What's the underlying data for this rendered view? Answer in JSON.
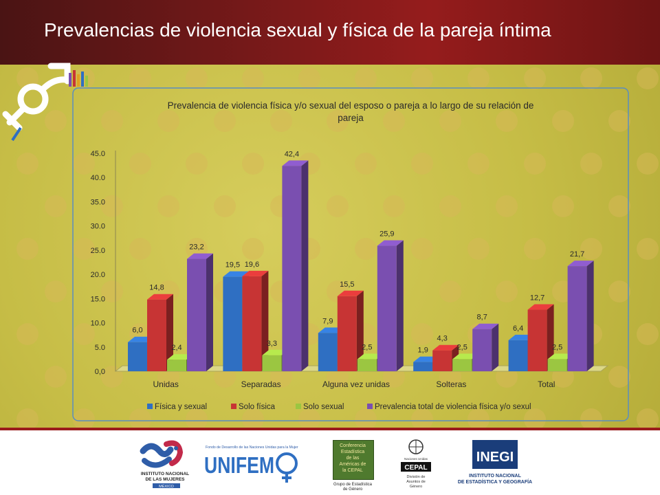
{
  "slide": {
    "title": "Prevalencias de violencia sexual y física de la pareja íntima"
  },
  "chart_data": {
    "type": "bar",
    "title": "Prevalencia de violencia física y/o sexual del esposo o pareja a lo largo de su relación de pareja",
    "title_lines": [
      "Prevalencia de violencia física y/o sexual del esposo o pareja a lo largo de su relación de",
      "pareja"
    ],
    "categories": [
      "Unidas",
      "Separadas",
      "Alguna vez unidas",
      "Solteras",
      "Total"
    ],
    "series": [
      {
        "name": "Física y sexual",
        "values": [
          6.0,
          19.5,
          7.9,
          1.9,
          6.4
        ],
        "color": "#2f6fc2"
      },
      {
        "name": "Solo física",
        "values": [
          14.8,
          19.6,
          15.5,
          4.3,
          12.7
        ],
        "color": "#c73434"
      },
      {
        "name": "Solo sexual",
        "values": [
          2.4,
          3.3,
          2.5,
          2.5,
          2.5
        ],
        "color": "#9bc641"
      },
      {
        "name": "Prevalencia total de violencia física y/o sexul",
        "values": [
          23.2,
          42.4,
          25.9,
          8.7,
          21.7
        ],
        "color": "#7a4fb0"
      }
    ],
    "yticks": [
      "0,0",
      "5.0",
      "10.0",
      "15.0",
      "20.0",
      "25.0",
      "30.0",
      "35.0",
      "40.0",
      "45.0"
    ],
    "ylim": [
      0,
      45
    ],
    "data_labels": [
      [
        "6,0",
        "19,5",
        "7,9",
        "1,9",
        "6,4"
      ],
      [
        "14,8",
        "19,6",
        "15,5",
        "4,3",
        "12,7"
      ],
      [
        "2,4",
        "3,3",
        "2,5",
        "2,5",
        "2,5"
      ],
      [
        "23,2",
        "42,4",
        "25,9",
        "8,7",
        "21,7"
      ]
    ],
    "legend_position": "bottom",
    "style": "3d-columns"
  },
  "logos": {
    "inmujeres": {
      "lines": [
        "INSTITUTO NACIONAL",
        "DE LAS MUJERES",
        "MÉXICO"
      ]
    },
    "unifem": {
      "top": "Fondo de Desarrollo de las Naciones Unidas para la Mujer",
      "word": "UNIFEM"
    },
    "conferencia": {
      "lines": [
        "Conferencia",
        "Estadística",
        "de las",
        "Américas de",
        "la CEPAL"
      ],
      "caption": [
        "Grupo de Estadística",
        "de Género"
      ]
    },
    "cepal": {
      "top": "Naciones Unidas",
      "word": "CEPAL",
      "caption": [
        "División de",
        "Asuntos de",
        "Género"
      ]
    },
    "inegi": {
      "word": "INEGI",
      "lines": [
        "INSTITUTO NACIONAL",
        "DE ESTADÍSTICA Y GEOGRAFÍA"
      ]
    }
  }
}
